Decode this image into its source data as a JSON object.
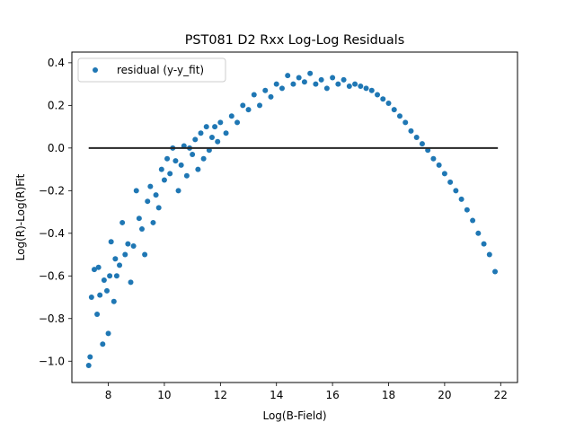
{
  "chart_data": {
    "type": "scatter",
    "title": "PST081 D2 Rxx Log-Log Residuals",
    "xlabel": "Log(B-Field)",
    "ylabel": "Log(R)-Log(R)Fit",
    "xlim": [
      6.7,
      22.6
    ],
    "ylim": [
      -1.1,
      0.45
    ],
    "xticks": [
      8,
      10,
      12,
      14,
      16,
      18,
      20,
      22
    ],
    "yticks": [
      -1.0,
      -0.8,
      -0.6,
      -0.4,
      -0.2,
      0.0,
      0.2,
      0.4
    ],
    "xtick_labels": [
      "8",
      "10",
      "12",
      "14",
      "16",
      "18",
      "20",
      "22"
    ],
    "ytick_labels": [
      "−1.0",
      "−0.8",
      "−0.6",
      "−0.4",
      "−0.2",
      "0.0",
      "0.2",
      "0.4"
    ],
    "grid": false,
    "legend_position": "upper left",
    "series": [
      {
        "name": "residual (y-y_fit)",
        "color": "#1f77b4",
        "marker": "circle",
        "points": [
          [
            7.3,
            -1.02
          ],
          [
            7.35,
            -0.98
          ],
          [
            7.4,
            -0.7
          ],
          [
            7.5,
            -0.57
          ],
          [
            7.6,
            -0.78
          ],
          [
            7.65,
            -0.56
          ],
          [
            7.7,
            -0.69
          ],
          [
            7.8,
            -0.92
          ],
          [
            7.85,
            -0.62
          ],
          [
            7.95,
            -0.67
          ],
          [
            8.0,
            -0.87
          ],
          [
            8.05,
            -0.6
          ],
          [
            8.1,
            -0.44
          ],
          [
            8.2,
            -0.72
          ],
          [
            8.25,
            -0.52
          ],
          [
            8.3,
            -0.6
          ],
          [
            8.4,
            -0.55
          ],
          [
            8.5,
            -0.35
          ],
          [
            8.6,
            -0.5
          ],
          [
            8.7,
            -0.45
          ],
          [
            8.8,
            -0.63
          ],
          [
            8.9,
            -0.46
          ],
          [
            9.0,
            -0.2
          ],
          [
            9.1,
            -0.33
          ],
          [
            9.2,
            -0.38
          ],
          [
            9.3,
            -0.5
          ],
          [
            9.4,
            -0.25
          ],
          [
            9.5,
            -0.18
          ],
          [
            9.6,
            -0.35
          ],
          [
            9.7,
            -0.22
          ],
          [
            9.8,
            -0.28
          ],
          [
            9.9,
            -0.1
          ],
          [
            10.0,
            -0.15
          ],
          [
            10.1,
            -0.05
          ],
          [
            10.2,
            -0.12
          ],
          [
            10.3,
            0.0
          ],
          [
            10.4,
            -0.06
          ],
          [
            10.5,
            -0.2
          ],
          [
            10.6,
            -0.08
          ],
          [
            10.7,
            0.01
          ],
          [
            10.8,
            -0.13
          ],
          [
            10.9,
            0.0
          ],
          [
            11.0,
            -0.03
          ],
          [
            11.1,
            0.04
          ],
          [
            11.2,
            -0.1
          ],
          [
            11.3,
            0.07
          ],
          [
            11.4,
            -0.05
          ],
          [
            11.5,
            0.1
          ],
          [
            11.6,
            -0.01
          ],
          [
            11.7,
            0.05
          ],
          [
            11.8,
            0.1
          ],
          [
            11.9,
            0.03
          ],
          [
            12.0,
            0.12
          ],
          [
            12.2,
            0.07
          ],
          [
            12.4,
            0.15
          ],
          [
            12.6,
            0.12
          ],
          [
            12.8,
            0.2
          ],
          [
            13.0,
            0.18
          ],
          [
            13.2,
            0.25
          ],
          [
            13.4,
            0.2
          ],
          [
            13.6,
            0.27
          ],
          [
            13.8,
            0.24
          ],
          [
            14.0,
            0.3
          ],
          [
            14.2,
            0.28
          ],
          [
            14.4,
            0.34
          ],
          [
            14.6,
            0.3
          ],
          [
            14.8,
            0.33
          ],
          [
            15.0,
            0.31
          ],
          [
            15.2,
            0.35
          ],
          [
            15.4,
            0.3
          ],
          [
            15.6,
            0.32
          ],
          [
            15.8,
            0.28
          ],
          [
            16.0,
            0.33
          ],
          [
            16.2,
            0.3
          ],
          [
            16.4,
            0.32
          ],
          [
            16.6,
            0.29
          ],
          [
            16.8,
            0.3
          ],
          [
            17.0,
            0.29
          ],
          [
            17.2,
            0.28
          ],
          [
            17.4,
            0.27
          ],
          [
            17.6,
            0.25
          ],
          [
            17.8,
            0.23
          ],
          [
            18.0,
            0.21
          ],
          [
            18.2,
            0.18
          ],
          [
            18.4,
            0.15
          ],
          [
            18.6,
            0.12
          ],
          [
            18.8,
            0.08
          ],
          [
            19.0,
            0.05
          ],
          [
            19.2,
            0.02
          ],
          [
            19.4,
            -0.01
          ],
          [
            19.6,
            -0.05
          ],
          [
            19.8,
            -0.08
          ],
          [
            20.0,
            -0.12
          ],
          [
            20.2,
            -0.16
          ],
          [
            20.4,
            -0.2
          ],
          [
            20.6,
            -0.24
          ],
          [
            20.8,
            -0.29
          ],
          [
            21.0,
            -0.34
          ],
          [
            21.2,
            -0.4
          ],
          [
            21.4,
            -0.45
          ],
          [
            21.6,
            -0.5
          ],
          [
            21.8,
            -0.58
          ]
        ]
      },
      {
        "name": "",
        "type": "line",
        "color": "#262626",
        "points": [
          [
            7.3,
            0.0
          ],
          [
            21.9,
            0.0
          ]
        ]
      }
    ]
  }
}
